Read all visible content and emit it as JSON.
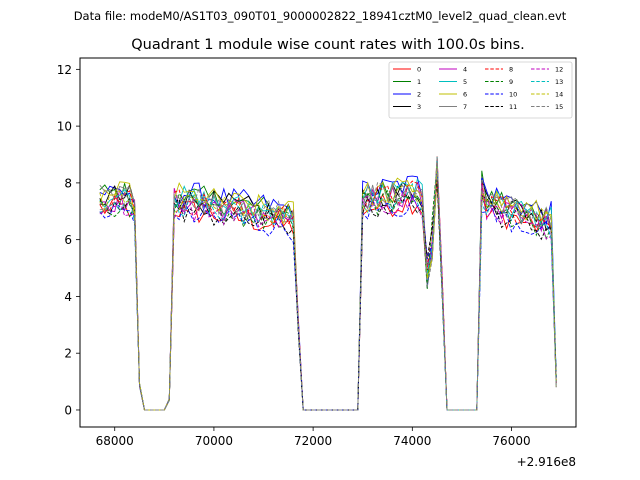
{
  "chart_data": {
    "type": "line",
    "suptitle": "Data file: modeM0/AS1T03_090T01_9000002822_18941cztM0_level2_quad_clean.evt",
    "title": "Quadrant 1 module wise count rates with 100.0s bins.",
    "xlabel": "",
    "ylabel": "",
    "x_offset_label": "+2.916e8",
    "xlim": [
      67300,
      77300
    ],
    "ylim": [
      -0.6,
      12.4
    ],
    "x_ticks": [
      68000,
      70000,
      72000,
      74000,
      76000
    ],
    "x_tick_labels": [
      "68000",
      "70000",
      "72000",
      "74000",
      "76000"
    ],
    "y_ticks": [
      0,
      2,
      4,
      6,
      8,
      10,
      12
    ],
    "y_tick_labels": [
      "0",
      "2",
      "4",
      "6",
      "8",
      "10",
      "12"
    ],
    "legend_position": "top-right",
    "base_level": [
      7.1,
      7.6,
      7.7,
      7.5,
      7.4,
      7.5,
      7.6,
      7.5,
      7.4,
      7.2,
      7.0,
      7.1,
      7.2,
      7.3,
      7.4,
      7.5
    ],
    "series": [
      {
        "name": "0",
        "color": "#ff0000",
        "dash": "solid"
      },
      {
        "name": "1",
        "color": "#008000",
        "dash": "solid"
      },
      {
        "name": "2",
        "color": "#0000ff",
        "dash": "solid"
      },
      {
        "name": "3",
        "color": "#000000",
        "dash": "solid"
      },
      {
        "name": "4",
        "color": "#bf00bf",
        "dash": "solid"
      },
      {
        "name": "5",
        "color": "#00bfbf",
        "dash": "solid"
      },
      {
        "name": "6",
        "color": "#bfbf00",
        "dash": "solid"
      },
      {
        "name": "7",
        "color": "#808080",
        "dash": "solid"
      },
      {
        "name": "8",
        "color": "#ff0000",
        "dash": "dashed"
      },
      {
        "name": "9",
        "color": "#008000",
        "dash": "dashed"
      },
      {
        "name": "10",
        "color": "#0000ff",
        "dash": "dashed"
      },
      {
        "name": "11",
        "color": "#000000",
        "dash": "dashed"
      },
      {
        "name": "12",
        "color": "#bf00bf",
        "dash": "dashed"
      },
      {
        "name": "13",
        "color": "#00bfbf",
        "dash": "dashed"
      },
      {
        "name": "14",
        "color": "#bfbf00",
        "dash": "dashed"
      },
      {
        "name": "15",
        "color": "#808080",
        "dash": "dashed"
      }
    ]
  }
}
